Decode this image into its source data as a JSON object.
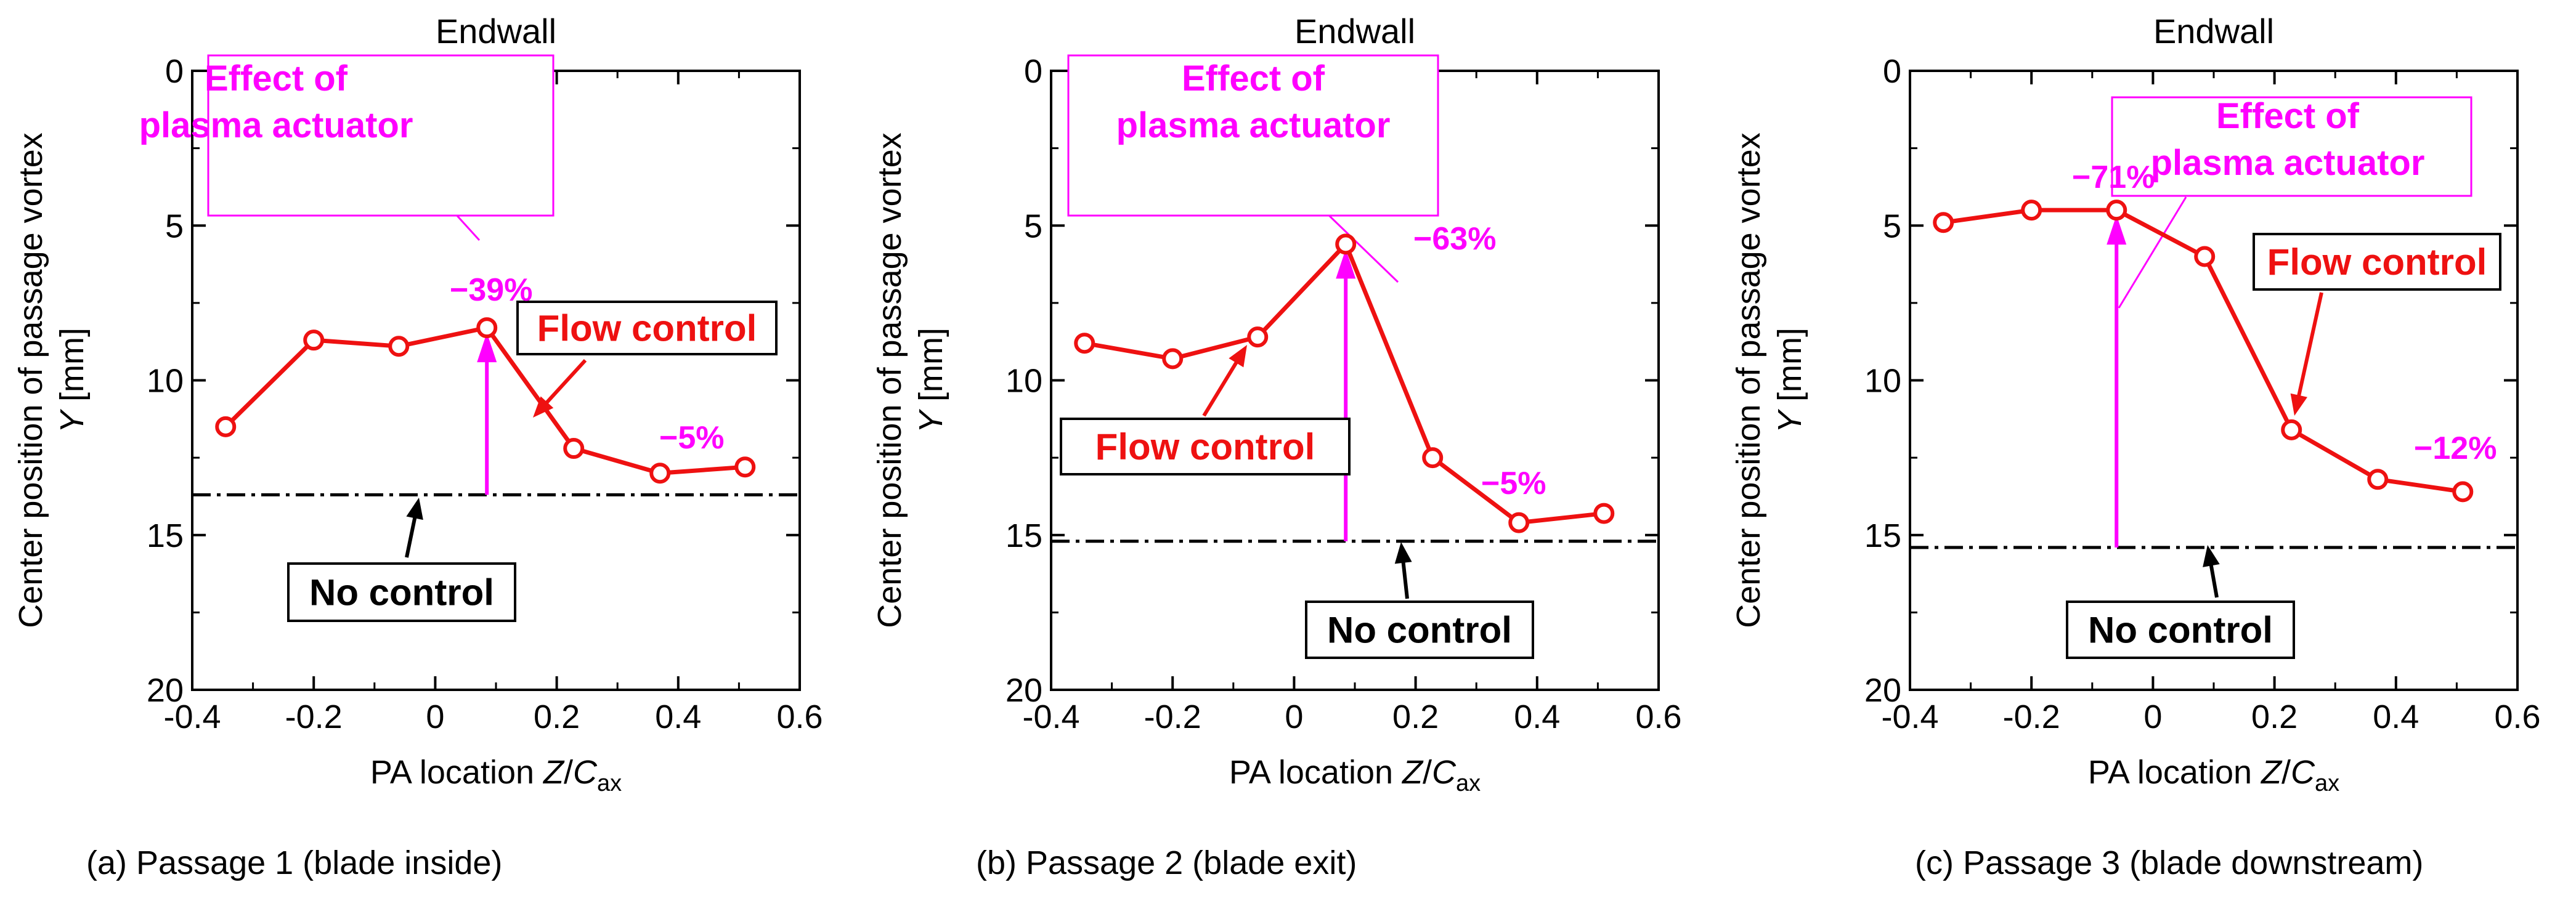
{
  "chart_data": [
    {
      "type": "line",
      "title": "Endwall",
      "caption": "(a) Passage 1 (blade inside)",
      "xlabel": {
        "main": "PA location ",
        "var": "Z",
        "slash": "/",
        "sym": "C",
        "sub": "ax"
      },
      "ylabel": {
        "line1": "Center position of passage vortex",
        "var": "Y",
        "unit": " [mm]"
      },
      "xlim": [
        -0.4,
        0.6
      ],
      "ylim": [
        20,
        0
      ],
      "y_inverted": true,
      "xticks": [
        "-0.4",
        "-0.2",
        "0",
        "0.2",
        "0.4",
        "0.6"
      ],
      "yticks": [
        "0",
        "5",
        "10",
        "15",
        "20"
      ],
      "series": [
        {
          "name": "Flow control",
          "color": "#ee1111",
          "x": [
            -0.345,
            -0.2,
            -0.06,
            0.085,
            0.228,
            0.37,
            0.51
          ],
          "y": [
            11.5,
            8.7,
            8.9,
            8.3,
            12.2,
            13.0,
            12.8
          ]
        }
      ],
      "no_control_y": 13.7,
      "effect_arrow": {
        "x": 0.085,
        "y_from": 13.7,
        "y_to": 8.3
      },
      "annotations": {
        "effect_label": [
          "Effect of",
          "plasma actuator"
        ],
        "flow_label": "Flow control",
        "no_control_label": "No control",
        "pct_main": "−39%",
        "pct_second": "−5%"
      }
    },
    {
      "type": "line",
      "title": "Endwall",
      "caption": "(b) Passage 2 (blade exit)",
      "xlabel": {
        "main": "PA location ",
        "var": "Z",
        "slash": "/",
        "sym": "C",
        "sub": "ax"
      },
      "ylabel": {
        "line1": "Center position of passage vortex",
        "var": "Y",
        "unit": " [mm]"
      },
      "xlim": [
        -0.4,
        0.6
      ],
      "ylim": [
        20,
        0
      ],
      "y_inverted": true,
      "xticks": [
        "-0.4",
        "-0.2",
        "0",
        "0.2",
        "0.4",
        "0.6"
      ],
      "yticks": [
        "0",
        "5",
        "10",
        "15",
        "20"
      ],
      "series": [
        {
          "name": "Flow control",
          "color": "#ee1111",
          "x": [
            -0.345,
            -0.2,
            -0.06,
            0.085,
            0.228,
            0.37,
            0.51
          ],
          "y": [
            8.8,
            9.3,
            8.6,
            5.6,
            12.5,
            14.6,
            14.3
          ]
        }
      ],
      "no_control_y": 15.2,
      "effect_arrow": {
        "x": 0.085,
        "y_from": 15.2,
        "y_to": 5.6
      },
      "annotations": {
        "effect_label": [
          "Effect of",
          "plasma actuator"
        ],
        "flow_label": "Flow control",
        "no_control_label": "No control",
        "pct_main": "−63%",
        "pct_second": "−5%"
      }
    },
    {
      "type": "line",
      "title": "Endwall",
      "caption": "(c) Passage 3 (blade downstream)",
      "xlabel": {
        "main": "PA location ",
        "var": "Z",
        "slash": "/",
        "sym": "C",
        "sub": "ax"
      },
      "ylabel": {
        "line1": "Center position of passage vortex",
        "var": "Y",
        "unit": " [mm]"
      },
      "xlim": [
        -0.4,
        0.6
      ],
      "ylim": [
        20,
        0
      ],
      "y_inverted": true,
      "xticks": [
        "-0.4",
        "-0.2",
        "0",
        "0.2",
        "0.4",
        "0.6"
      ],
      "yticks": [
        "0",
        "5",
        "10",
        "15",
        "20"
      ],
      "series": [
        {
          "name": "Flow control",
          "color": "#ee1111",
          "x": [
            -0.345,
            -0.2,
            -0.06,
            0.085,
            0.228,
            0.37,
            0.51
          ],
          "y": [
            4.9,
            4.5,
            4.5,
            6.0,
            11.6,
            13.2,
            13.6
          ]
        }
      ],
      "no_control_y": 15.4,
      "effect_arrow": {
        "x": -0.06,
        "y_from": 15.4,
        "y_to": 4.5
      },
      "annotations": {
        "effect_label": [
          "Effect of",
          "plasma actuator"
        ],
        "flow_label": "Flow control",
        "no_control_label": "No control",
        "pct_main": "−71%",
        "pct_second": "−12%"
      }
    }
  ]
}
